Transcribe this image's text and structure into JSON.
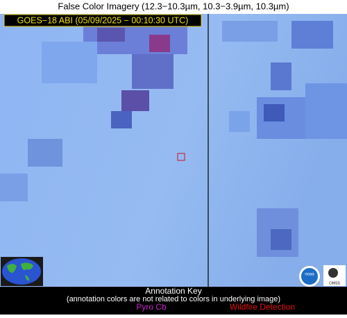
{
  "header": {
    "title": "False Color Imagery (12.3−10.3µm, 10.3−3.9µm, 10.3µm)"
  },
  "image": {
    "label": "GOES−18 ABI (05/09/2025 − 00:10:30 UTC)"
  },
  "logos": {
    "noaa": "noaa",
    "cimss": "CIMSS"
  },
  "key": {
    "title": "Annotation Key",
    "note": "(annotation colors are not related to colors in underlying image)",
    "items": [
      "Pyro Cb",
      "Wildfire Detection"
    ]
  }
}
